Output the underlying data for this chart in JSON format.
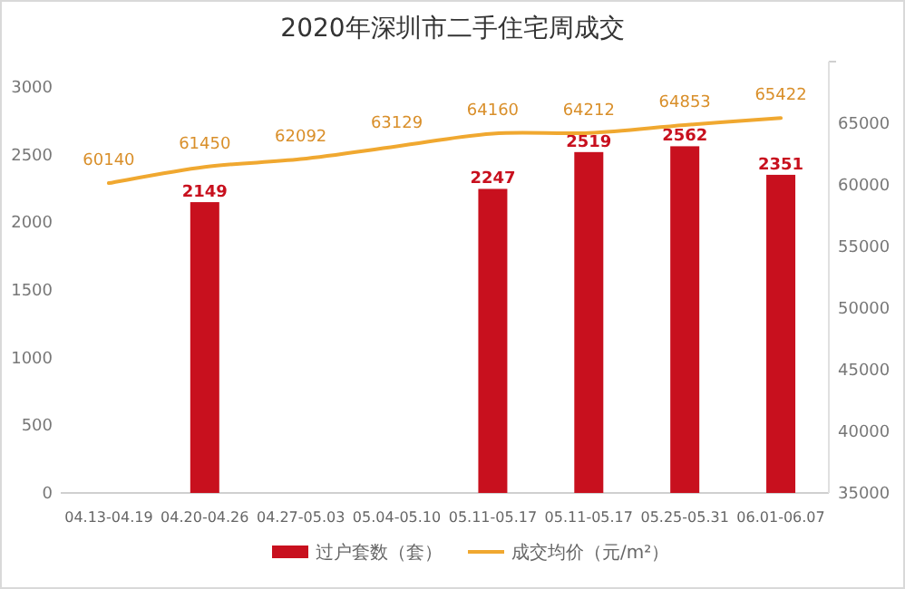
{
  "chart_data": {
    "type": "bar",
    "title": "2020年深圳市二手住宅周成交",
    "categories": [
      "04.13-04.19",
      "04.20-04.26",
      "04.27-05.03",
      "05.04-05.10",
      "05.11-05.17",
      "05.11-05.17",
      "05.25-05.31",
      "06.01-06.07"
    ],
    "series": [
      {
        "name": "过户套数（套）",
        "color": "#c8101e",
        "values": [
          null,
          2149,
          null,
          null,
          2247,
          2519,
          2562,
          2351
        ],
        "value_labels": [
          null,
          "2149",
          null,
          null,
          "2247",
          "2519",
          "2562",
          "2351"
        ]
      },
      {
        "name": "成交均价（元/m²）",
        "type": "line",
        "axis": "y2",
        "color": "#f0a830",
        "values": [
          60140,
          61450,
          62092,
          63129,
          64160,
          64212,
          64853,
          65422
        ],
        "value_labels": [
          "60140",
          "61450",
          "62092",
          "63129",
          "64160",
          "64212",
          "64853",
          "65422"
        ]
      }
    ],
    "ylim": [
      0,
      3000
    ],
    "yticks": [
      0,
      500,
      1000,
      1500,
      2000,
      2500,
      3000
    ],
    "y2lim": [
      35000,
      70000
    ],
    "y2ticks": [
      35000,
      40000,
      45000,
      50000,
      55000,
      60000,
      65000,
      {
        "value": 70000,
        "label": null
      }
    ],
    "legend": "bottom",
    "grid": false
  }
}
